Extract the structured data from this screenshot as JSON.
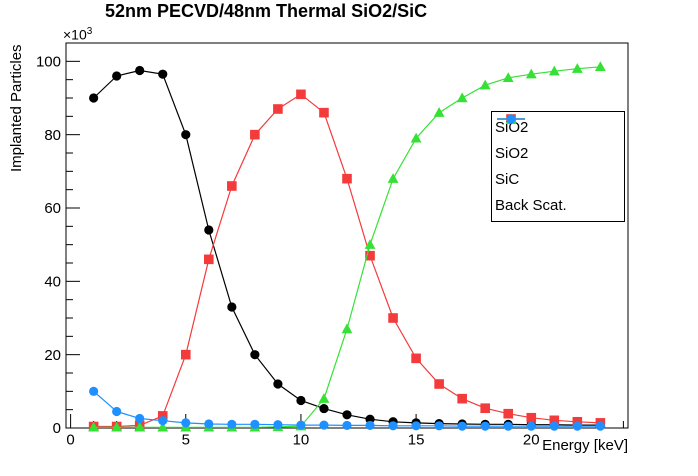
{
  "title": "52nm PECVD/48nm Thermal SiO2/SiC",
  "axes": {
    "x": {
      "title": "Energy [keV]",
      "major_ticks": [
        0,
        5,
        10,
        15,
        20
      ],
      "minor_step": 1,
      "range": [
        -0.2,
        24.2
      ]
    },
    "y": {
      "title": "Implanted Particles",
      "multiplier_base": "×10",
      "multiplier_exp": "3",
      "major_ticks": [
        0,
        20,
        40,
        60,
        80,
        100
      ],
      "minor_step": 5,
      "range": [
        0,
        105
      ]
    }
  },
  "chart_data": {
    "type": "line",
    "title": "52nm PECVD/48nm Thermal SiO2/SiC",
    "xlabel": "Energy [keV]",
    "ylabel": "Implanted Particles",
    "y_unit_multiplier": 1000,
    "xlim": [
      -0.2,
      24.2
    ],
    "ylim": [
      0,
      105
    ],
    "grid": false,
    "legend_position": "right-middle",
    "x": [
      1,
      2,
      3,
      4,
      5,
      6,
      7,
      8,
      9,
      10,
      11,
      12,
      13,
      14,
      15,
      16,
      17,
      18,
      19,
      20,
      21,
      22,
      23
    ],
    "series": [
      {
        "name": "SiO2",
        "color": "#000000",
        "marker": "circle",
        "values": [
          90,
          96,
          97.5,
          96.5,
          80,
          54,
          33,
          20,
          12,
          7.5,
          5.3,
          3.6,
          2.4,
          1.7,
          1.4,
          1.2,
          1.1,
          1.0,
          1.0,
          0.9,
          0.9,
          0.8,
          0.8
        ]
      },
      {
        "name": "SiO2",
        "color": "#f43b3b",
        "marker": "square",
        "values": [
          0.4,
          0.4,
          0.7,
          3.3,
          20,
          46,
          66,
          80,
          87,
          91,
          86,
          68,
          47,
          30,
          19,
          12,
          8,
          5.4,
          3.9,
          2.8,
          2.1,
          1.7,
          1.4
        ]
      },
      {
        "name": "SiC",
        "color": "#35e135",
        "marker": "triangle",
        "values": [
          0.2,
          0.2,
          0.2,
          0.2,
          0.2,
          0.2,
          0.2,
          0.2,
          0.3,
          0.5,
          8,
          27,
          50,
          68,
          79,
          86,
          90,
          93.5,
          95.5,
          96.5,
          97.3,
          98,
          98.5
        ]
      },
      {
        "name": "Back Scat.",
        "color": "#1e90ff",
        "marker": "circle",
        "values": [
          10,
          4.5,
          2.6,
          2.0,
          1.4,
          1.1,
          1.0,
          1.0,
          0.9,
          0.8,
          0.8,
          0.7,
          0.7,
          0.6,
          0.6,
          0.6,
          0.5,
          0.5,
          0.5,
          0.5,
          0.5,
          0.5,
          0.5
        ]
      }
    ]
  }
}
